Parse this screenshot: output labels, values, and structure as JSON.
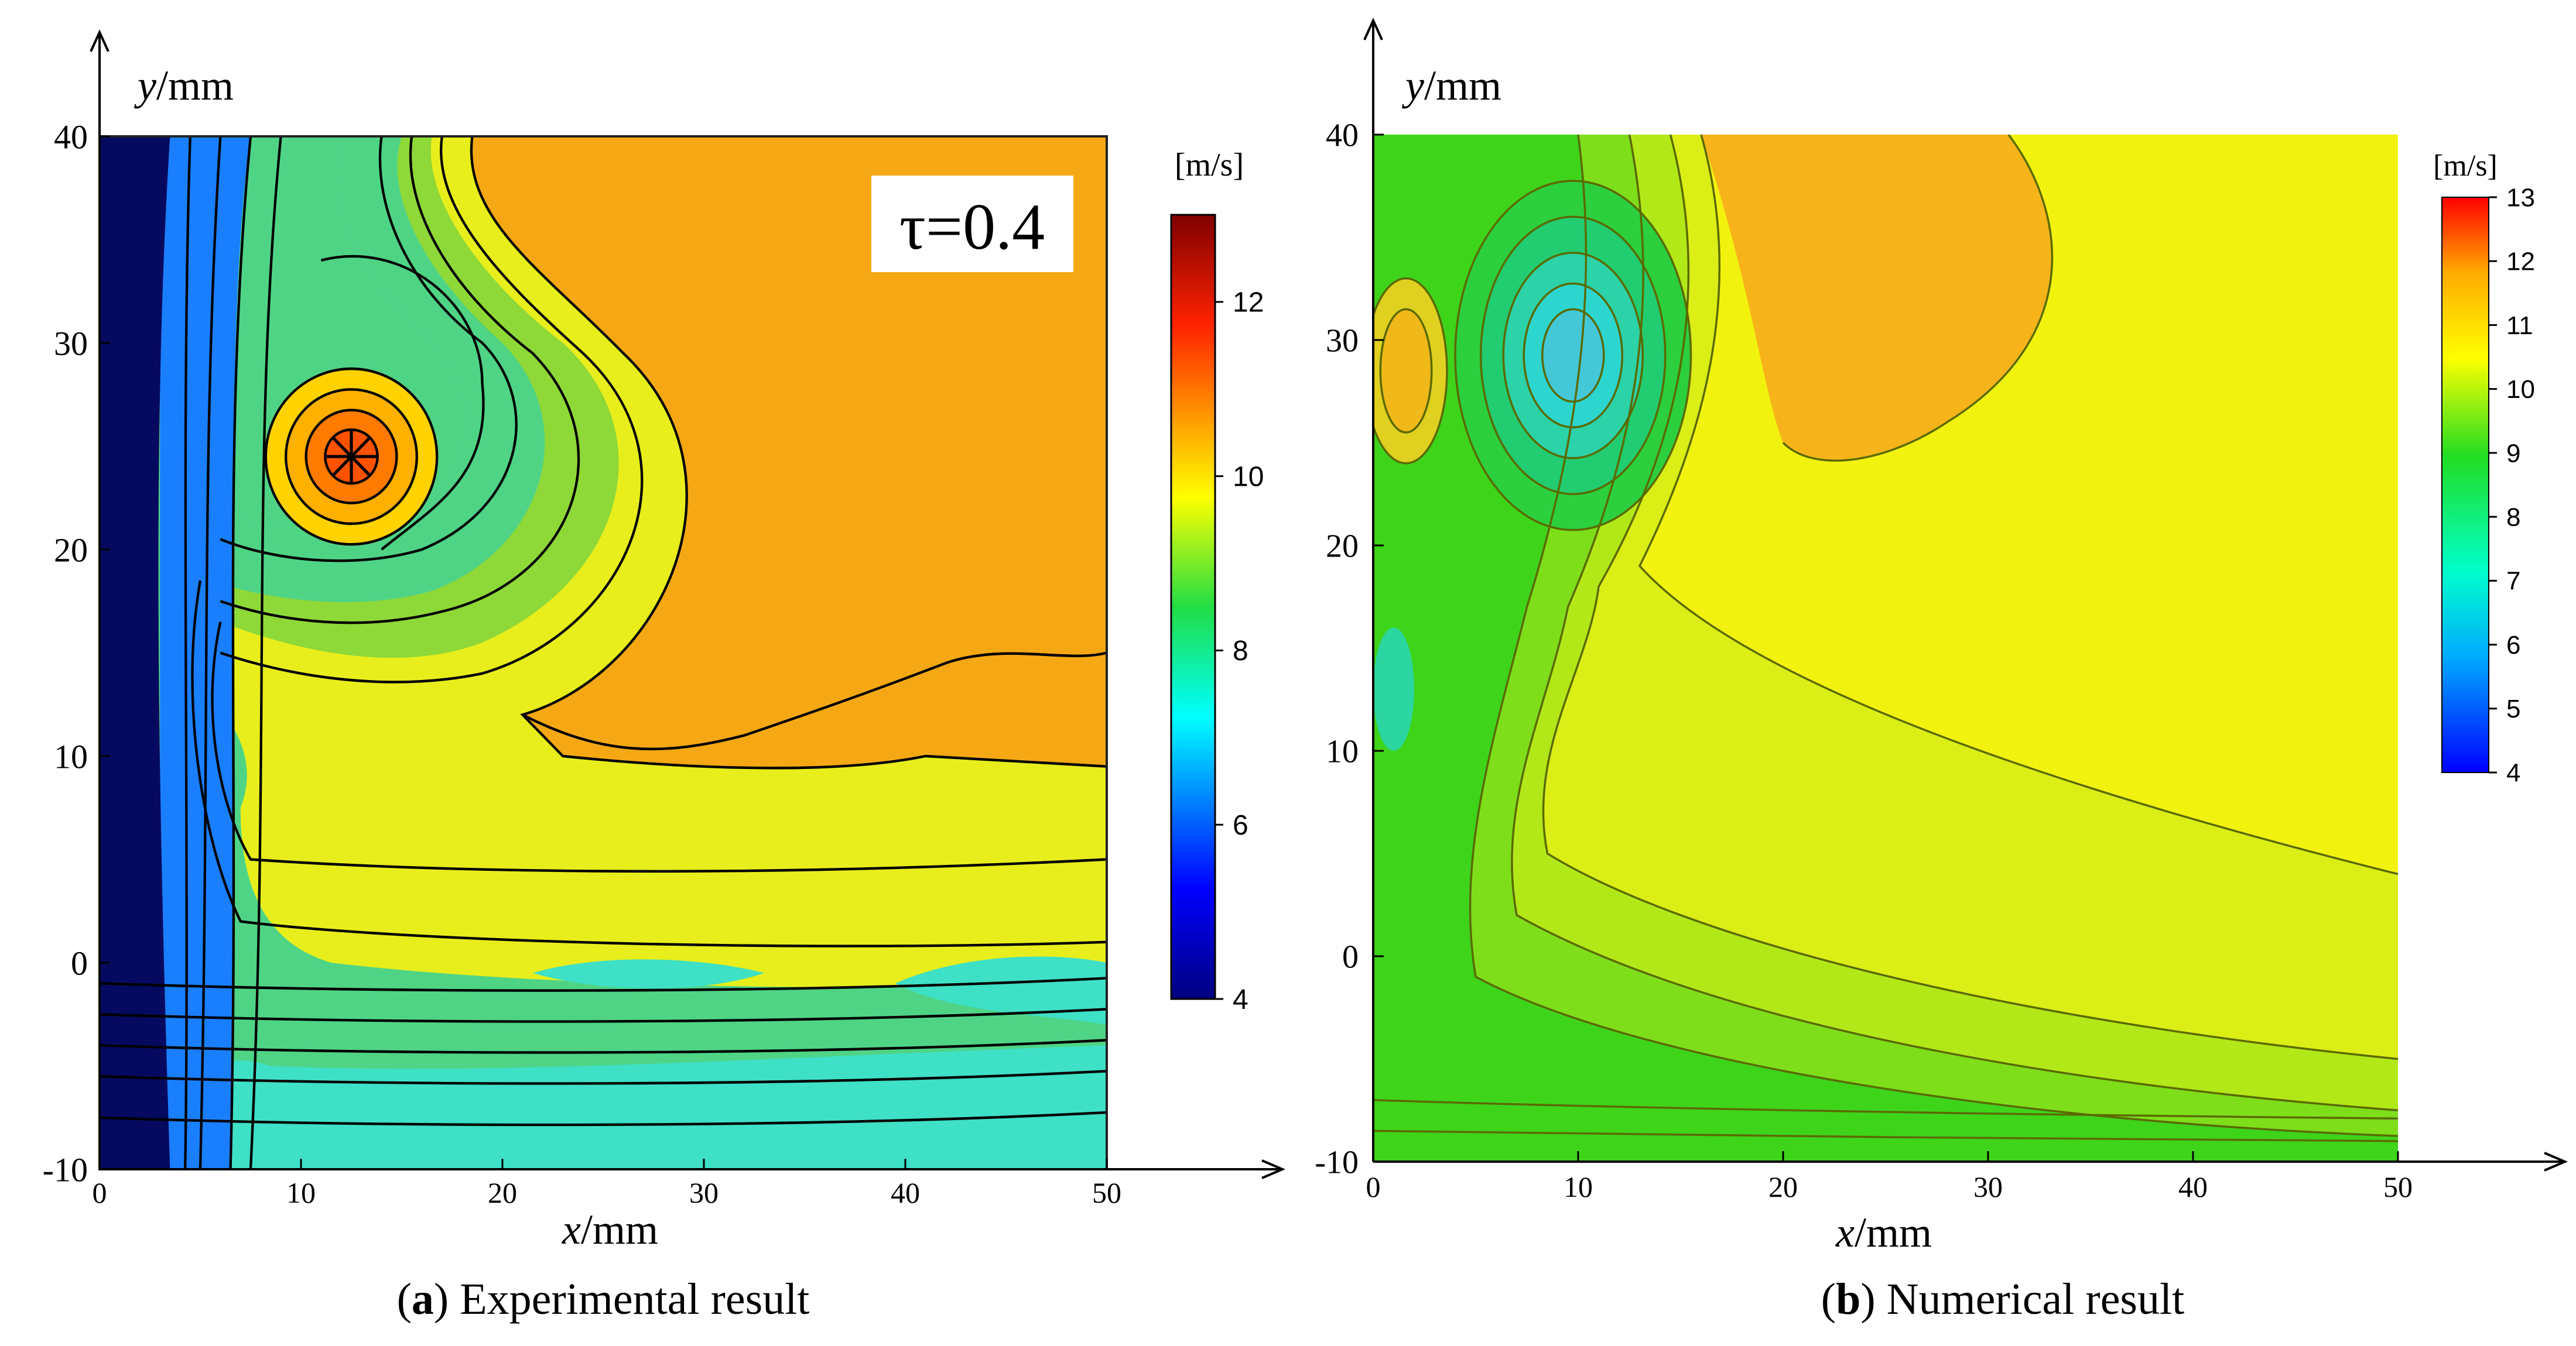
{
  "chart_data": [
    {
      "type": "heatmap",
      "id": "panel-a",
      "caption_letter": "a",
      "caption_text": "Experimental result",
      "xlabel_var": "x",
      "xlabel_unit": "/mm",
      "ylabel_var": "y",
      "ylabel_unit": "/mm",
      "xlim": [
        0,
        50
      ],
      "ylim": [
        -10,
        40
      ],
      "xticks": [
        0,
        10,
        20,
        30,
        40,
        50
      ],
      "yticks": [
        -10,
        0,
        10,
        20,
        30,
        40
      ],
      "annotation": "τ=0.4",
      "colorbar": {
        "label": "[m/s]",
        "min": 4,
        "max": 13,
        "ticks": [
          4,
          6,
          8,
          10,
          12
        ]
      },
      "background_value": 10.6,
      "features": [
        {
          "kind": "vortex-core",
          "x": 12.5,
          "y": 25,
          "value": 12.2
        },
        {
          "kind": "plateau",
          "x": 38,
          "y": 28,
          "value": 10.6
        },
        {
          "kind": "yellow-band",
          "x": 25,
          "y": 5,
          "value": 10.0
        },
        {
          "kind": "wall-low",
          "x": 0.5,
          "y": 15,
          "value": 4.0
        },
        {
          "kind": "near-floor-low",
          "x": 30,
          "y": -6,
          "value": 7.3
        },
        {
          "kind": "spiral-arm",
          "x": 16,
          "y": 19,
          "value": 7.6
        }
      ]
    },
    {
      "type": "heatmap",
      "id": "panel-b",
      "caption_letter": "b",
      "caption_text": "Numerical result",
      "xlabel_var": "x",
      "xlabel_unit": "/mm",
      "ylabel_var": "y",
      "ylabel_unit": "/mm",
      "xlim": [
        0,
        50
      ],
      "ylim": [
        -10,
        40
      ],
      "xticks": [
        0,
        10,
        20,
        30,
        40,
        50
      ],
      "yticks": [
        -10,
        0,
        10,
        20,
        30,
        40
      ],
      "colorbar": {
        "label": "[m/s]",
        "min": 4,
        "max": 13,
        "ticks": [
          4,
          5,
          6,
          7,
          8,
          9,
          10,
          11,
          12,
          13
        ]
      },
      "background_value": 11.0,
      "features": [
        {
          "kind": "vortex-core",
          "x": 9.8,
          "y": 29.5,
          "value": 6.2
        },
        {
          "kind": "orange-lobe",
          "x": 28,
          "y": 32,
          "value": 11.7
        },
        {
          "kind": "left-lobe",
          "x": 2,
          "y": 28,
          "value": 11.5
        },
        {
          "kind": "wall-low",
          "x": 1,
          "y": 10,
          "value": 8.2
        },
        {
          "kind": "floor-low",
          "x": 6,
          "y": -8,
          "value": 8.3
        }
      ]
    }
  ]
}
